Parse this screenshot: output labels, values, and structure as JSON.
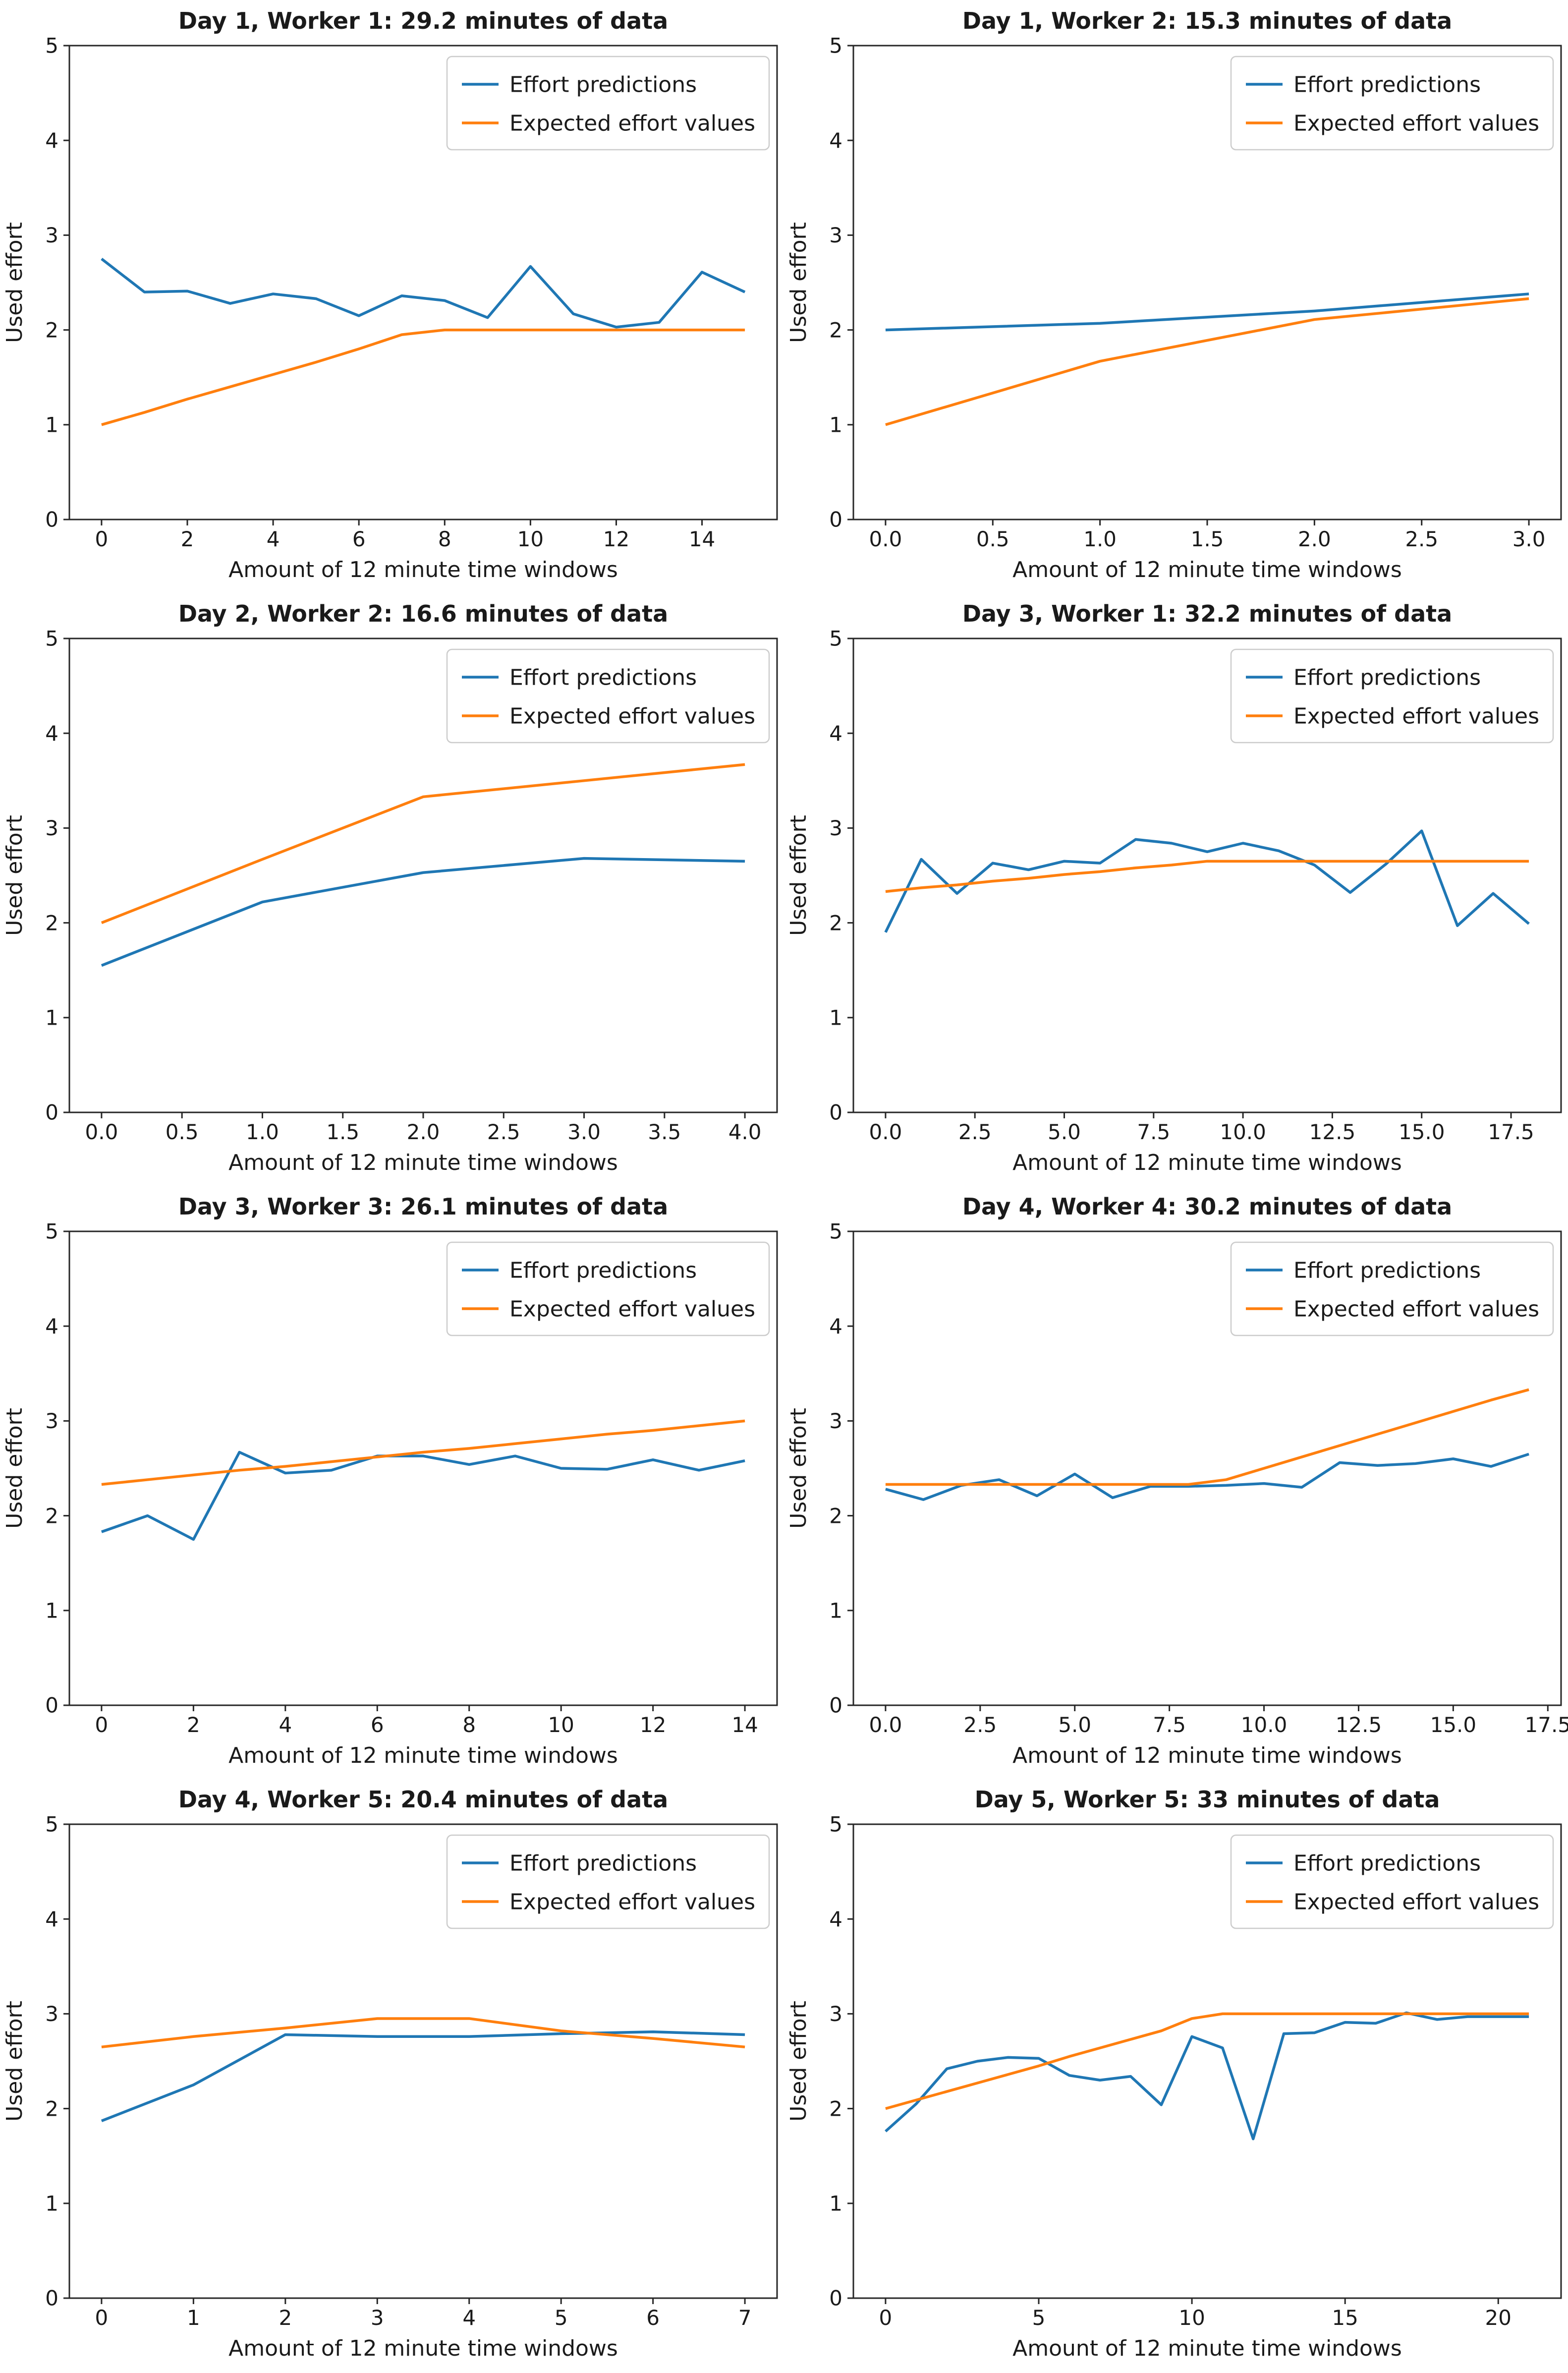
{
  "figure": {
    "background": "#ffffff",
    "text_color": "#1a1a1a",
    "spine_color": "#262626",
    "legend_border_color": "#cccccc",
    "legend_background": "#ffffff"
  },
  "legend": {
    "position": "upper right",
    "items": [
      {
        "label": "Effort predictions",
        "color": "#1f77b4"
      },
      {
        "label": "Expected effort values",
        "color": "#ff7f0e"
      }
    ]
  },
  "chart_data": [
    {
      "type": "line",
      "title": "Day 1, Worker 1: 29.2 minutes of data",
      "xlabel": "Amount of 12 minute time windows",
      "ylabel": "Used effort",
      "ylim": [
        0,
        5
      ],
      "yticks": [
        0,
        1,
        2,
        3,
        4,
        5
      ],
      "xlim": [
        0,
        15
      ],
      "xticks": [
        0,
        2,
        4,
        6,
        8,
        10,
        12,
        14
      ],
      "xtick_labels": [
        "0",
        "2",
        "4",
        "6",
        "8",
        "10",
        "12",
        "14"
      ],
      "grid": false,
      "series": [
        {
          "name": "Effort predictions",
          "color": "#1f77b4",
          "values": [
            2.75,
            2.4,
            2.41,
            2.28,
            2.38,
            2.33,
            2.15,
            2.36,
            2.31,
            2.13,
            2.67,
            2.17,
            2.03,
            2.08,
            2.61,
            2.4
          ]
        },
        {
          "name": "Expected effort values",
          "color": "#ff7f0e",
          "values": [
            1.0,
            1.13,
            1.27,
            1.4,
            1.53,
            1.66,
            1.8,
            1.95,
            2.0,
            2.0,
            2.0,
            2.0,
            2.0,
            2.0,
            2.0,
            2.0
          ]
        }
      ]
    },
    {
      "type": "line",
      "title": "Day 1, Worker 2: 15.3 minutes of data",
      "xlabel": "Amount of 12 minute time windows",
      "ylabel": "Used effort",
      "ylim": [
        0,
        5
      ],
      "yticks": [
        0,
        1,
        2,
        3,
        4,
        5
      ],
      "xlim": [
        0,
        3
      ],
      "xticks": [
        0,
        0.5,
        1,
        1.5,
        2,
        2.5,
        3
      ],
      "xtick_labels": [
        "0.0",
        "0.5",
        "1.0",
        "1.5",
        "2.0",
        "2.5",
        "3.0"
      ],
      "grid": false,
      "series": [
        {
          "name": "Effort predictions",
          "color": "#1f77b4",
          "values": [
            2.0,
            2.07,
            2.2,
            2.38
          ]
        },
        {
          "name": "Expected effort values",
          "color": "#ff7f0e",
          "values": [
            1.0,
            1.67,
            2.11,
            2.33
          ]
        }
      ]
    },
    {
      "type": "line",
      "title": "Day 2, Worker 2: 16.6 minutes of data",
      "xlabel": "Amount of 12 minute time windows",
      "ylabel": "Used effort",
      "ylim": [
        0,
        5
      ],
      "yticks": [
        0,
        1,
        2,
        3,
        4,
        5
      ],
      "xlim": [
        0,
        4
      ],
      "xticks": [
        0,
        0.5,
        1,
        1.5,
        2,
        2.5,
        3,
        3.5,
        4
      ],
      "xtick_labels": [
        "0.0",
        "0.5",
        "1.0",
        "1.5",
        "2.0",
        "2.5",
        "3.0",
        "3.5",
        "4.0"
      ],
      "grid": false,
      "series": [
        {
          "name": "Effort predictions",
          "color": "#1f77b4",
          "values": [
            1.55,
            2.22,
            2.53,
            2.68,
            2.65
          ]
        },
        {
          "name": "Expected effort values",
          "color": "#ff7f0e",
          "values": [
            2.0,
            2.67,
            3.33,
            3.5,
            3.67
          ]
        }
      ]
    },
    {
      "type": "line",
      "title": "Day 3, Worker 1: 32.2 minutes of data",
      "xlabel": "Amount of 12 minute time windows",
      "ylabel": "Used effort",
      "ylim": [
        0,
        5
      ],
      "yticks": [
        0,
        1,
        2,
        3,
        4,
        5
      ],
      "xlim": [
        0,
        18
      ],
      "xticks": [
        0,
        2.5,
        5,
        7.5,
        10,
        12.5,
        15,
        17.5
      ],
      "xtick_labels": [
        "0.0",
        "2.5",
        "5.0",
        "7.5",
        "10.0",
        "12.5",
        "15.0",
        "17.5"
      ],
      "grid": false,
      "series": [
        {
          "name": "Effort predictions",
          "color": "#1f77b4",
          "values": [
            1.9,
            2.67,
            2.31,
            2.63,
            2.56,
            2.65,
            2.63,
            2.88,
            2.84,
            2.75,
            2.84,
            2.76,
            2.61,
            2.32,
            2.62,
            2.97,
            1.97,
            2.31,
            1.99
          ]
        },
        {
          "name": "Expected effort values",
          "color": "#ff7f0e",
          "values": [
            2.33,
            2.37,
            2.4,
            2.44,
            2.47,
            2.51,
            2.54,
            2.58,
            2.61,
            2.65,
            2.65,
            2.65,
            2.65,
            2.65,
            2.65,
            2.65,
            2.65,
            2.65,
            2.65
          ]
        }
      ]
    },
    {
      "type": "line",
      "title": "Day 3, Worker 3: 26.1 minutes of data",
      "xlabel": "Amount of 12 minute time windows",
      "ylabel": "Used effort",
      "ylim": [
        0,
        5
      ],
      "yticks": [
        0,
        1,
        2,
        3,
        4,
        5
      ],
      "xlim": [
        0,
        14
      ],
      "xticks": [
        0,
        2,
        4,
        6,
        8,
        10,
        12,
        14
      ],
      "xtick_labels": [
        "0",
        "2",
        "4",
        "6",
        "8",
        "10",
        "12",
        "14"
      ],
      "grid": false,
      "series": [
        {
          "name": "Effort predictions",
          "color": "#1f77b4",
          "values": [
            1.83,
            2.0,
            1.75,
            2.67,
            2.45,
            2.48,
            2.63,
            2.63,
            2.54,
            2.63,
            2.5,
            2.49,
            2.59,
            2.48,
            2.58
          ]
        },
        {
          "name": "Expected effort values",
          "color": "#ff7f0e",
          "values": [
            2.33,
            2.38,
            2.43,
            2.48,
            2.52,
            2.57,
            2.62,
            2.67,
            2.71,
            2.76,
            2.81,
            2.86,
            2.9,
            2.95,
            3.0
          ]
        }
      ]
    },
    {
      "type": "line",
      "title": "Day 4, Worker 4: 30.2 minutes of data",
      "xlabel": "Amount of 12 minute time windows",
      "ylabel": "Used effort",
      "ylim": [
        0,
        5
      ],
      "yticks": [
        0,
        1,
        2,
        3,
        4,
        5
      ],
      "xlim": [
        0,
        17
      ],
      "xticks": [
        0,
        2.5,
        5,
        7.5,
        10,
        12.5,
        15,
        17.5
      ],
      "xtick_labels": [
        "0.0",
        "2.5",
        "5.0",
        "7.5",
        "10.0",
        "12.5",
        "15.0",
        "17.5"
      ],
      "grid": false,
      "series": [
        {
          "name": "Effort predictions",
          "color": "#1f77b4",
          "values": [
            2.28,
            2.17,
            2.32,
            2.38,
            2.21,
            2.44,
            2.19,
            2.31,
            2.31,
            2.32,
            2.34,
            2.3,
            2.56,
            2.53,
            2.55,
            2.6,
            2.52,
            2.65
          ]
        },
        {
          "name": "Expected effort values",
          "color": "#ff7f0e",
          "values": [
            2.33,
            2.33,
            2.33,
            2.33,
            2.33,
            2.33,
            2.33,
            2.33,
            2.33,
            2.38,
            2.5,
            2.62,
            2.74,
            2.86,
            2.98,
            3.1,
            3.22,
            3.33
          ]
        }
      ]
    },
    {
      "type": "line",
      "title": "Day 4, Worker 5: 20.4 minutes of data",
      "xlabel": "Amount of 12 minute time windows",
      "ylabel": "Used effort",
      "ylim": [
        0,
        5
      ],
      "yticks": [
        0,
        1,
        2,
        3,
        4,
        5
      ],
      "xlim": [
        0,
        7
      ],
      "xticks": [
        0,
        1,
        2,
        3,
        4,
        5,
        6,
        7
      ],
      "xtick_labels": [
        "0",
        "1",
        "2",
        "3",
        "4",
        "5",
        "6",
        "7"
      ],
      "grid": false,
      "series": [
        {
          "name": "Effort predictions",
          "color": "#1f77b4",
          "values": [
            1.87,
            2.25,
            2.78,
            2.76,
            2.76,
            2.79,
            2.81,
            2.78
          ]
        },
        {
          "name": "Expected effort values",
          "color": "#ff7f0e",
          "values": [
            2.65,
            2.76,
            2.85,
            2.95,
            2.95,
            2.82,
            2.74,
            2.65
          ]
        }
      ]
    },
    {
      "type": "line",
      "title": "Day 5, Worker 5: 33 minutes of data",
      "xlabel": "Amount of 12 minute time windows",
      "ylabel": "Used effort",
      "ylim": [
        0,
        5
      ],
      "yticks": [
        0,
        1,
        2,
        3,
        4,
        5
      ],
      "xlim": [
        0,
        21
      ],
      "xticks": [
        0,
        5,
        10,
        15,
        20
      ],
      "xtick_labels": [
        "0",
        "5",
        "10",
        "15",
        "20"
      ],
      "grid": false,
      "series": [
        {
          "name": "Effort predictions",
          "color": "#1f77b4",
          "values": [
            1.76,
            2.05,
            2.42,
            2.5,
            2.54,
            2.53,
            2.35,
            2.3,
            2.34,
            2.04,
            2.76,
            2.64,
            1.68,
            2.79,
            2.8,
            2.91,
            2.9,
            3.01,
            2.94,
            2.97,
            2.97,
            2.97
          ]
        },
        {
          "name": "Expected effort values",
          "color": "#ff7f0e",
          "values": [
            2.0,
            2.09,
            2.18,
            2.27,
            2.36,
            2.45,
            2.55,
            2.64,
            2.73,
            2.82,
            2.95,
            3.0,
            3.0,
            3.0,
            3.0,
            3.0,
            3.0,
            3.0,
            3.0,
            3.0,
            3.0,
            3.0
          ]
        }
      ]
    }
  ]
}
